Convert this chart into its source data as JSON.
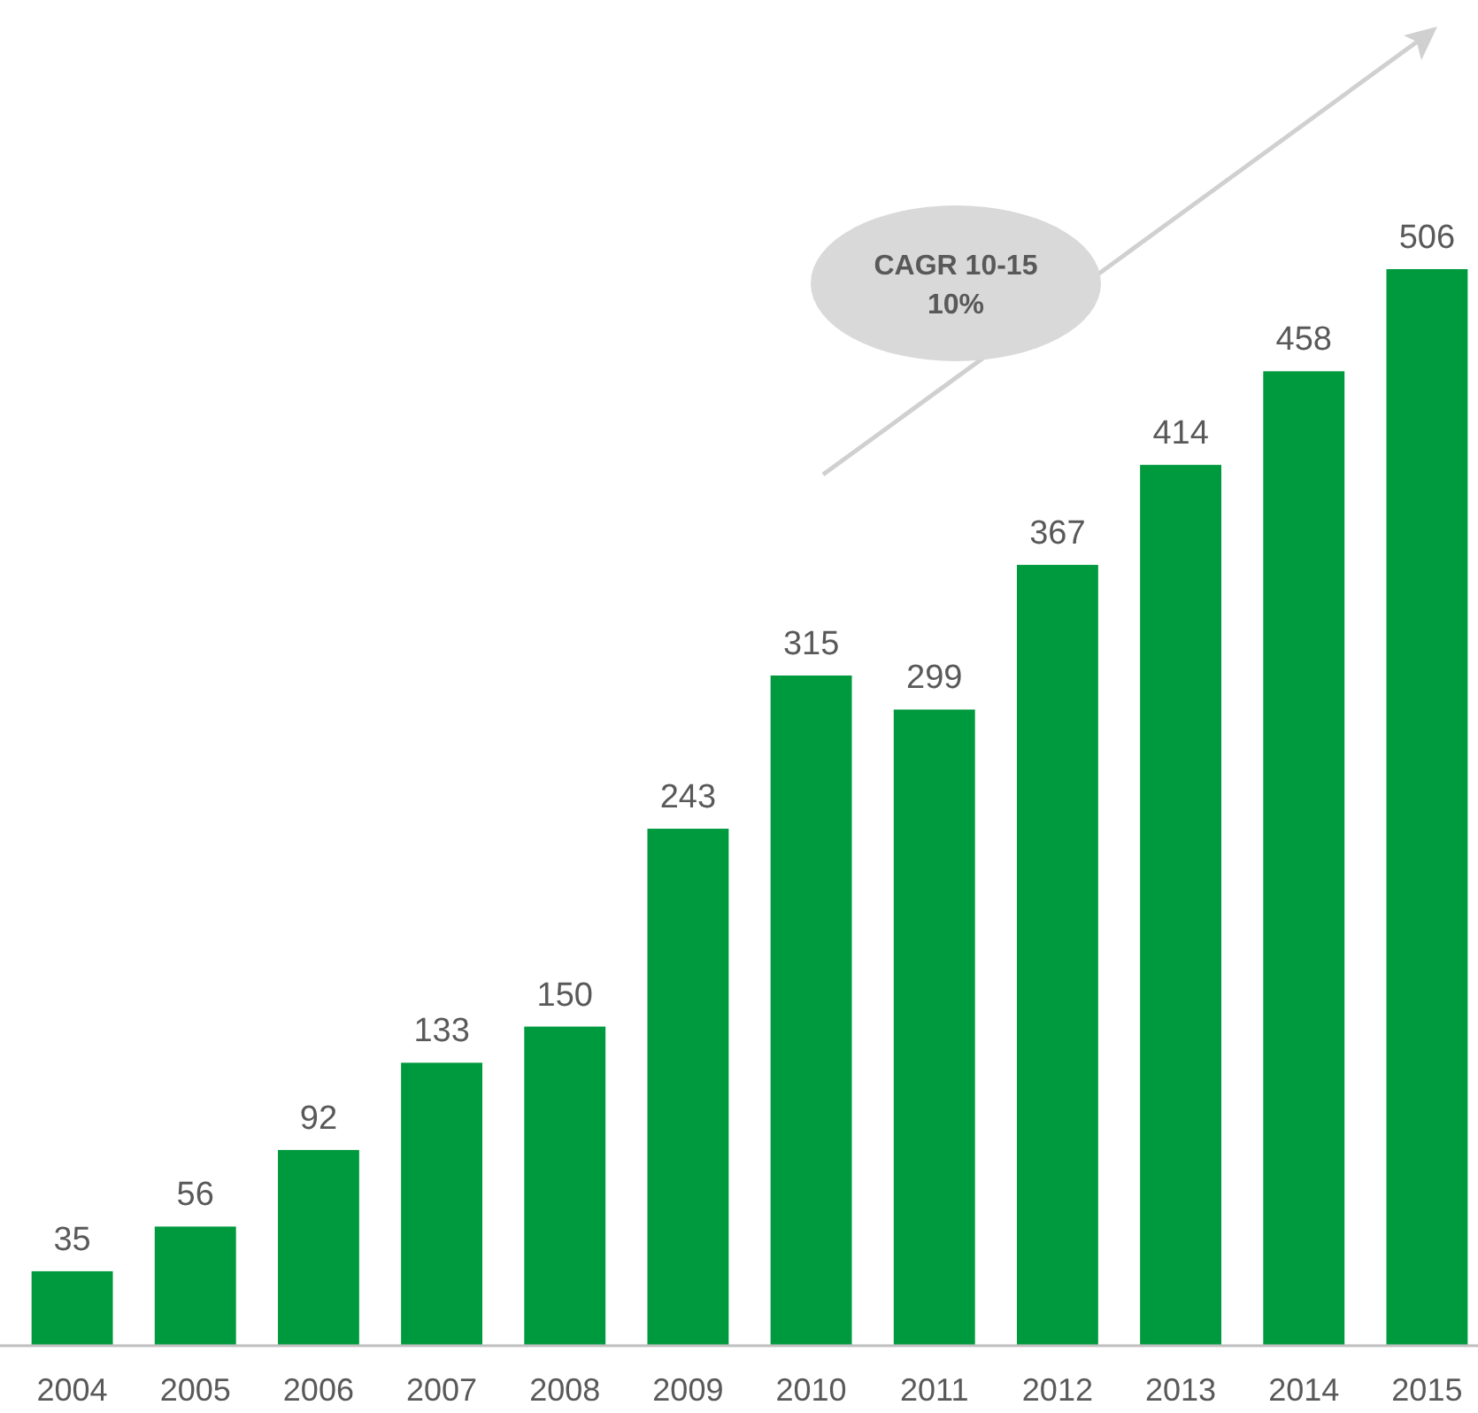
{
  "chart_data": {
    "type": "bar",
    "categories": [
      "2004",
      "2005",
      "2006",
      "2007",
      "2008",
      "2009",
      "2010",
      "2011",
      "2012",
      "2013",
      "2014",
      "2015"
    ],
    "values": [
      35,
      56,
      92,
      133,
      150,
      243,
      315,
      299,
      367,
      414,
      458,
      506
    ],
    "color": "#009a3e",
    "data_labels": true,
    "annotations": [
      "CAGR 10-15",
      "10%"
    ]
  }
}
